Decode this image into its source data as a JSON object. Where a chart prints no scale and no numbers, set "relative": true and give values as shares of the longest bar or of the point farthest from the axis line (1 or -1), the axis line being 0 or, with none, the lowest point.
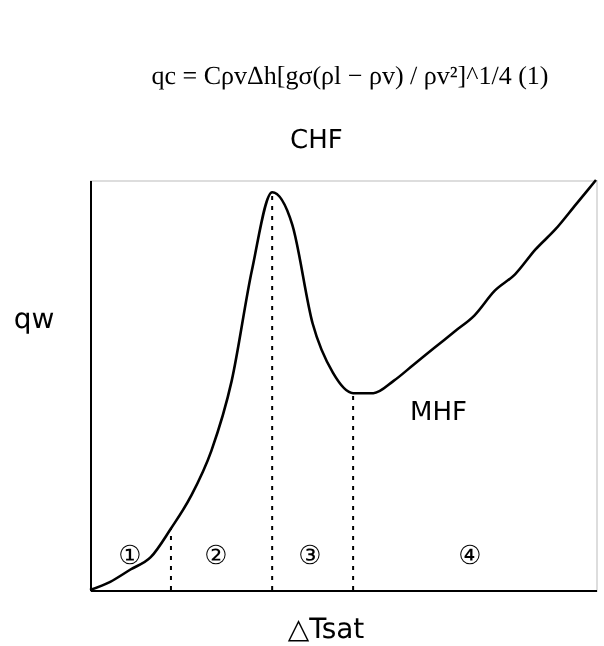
{
  "chart_data": {
    "type": "line",
    "relative": true,
    "title": "qc = CρvΔh[gσ(ρl − ρv) / ρv²]^1/4    (1)",
    "xlabel": "△Tsat",
    "ylabel": "qw",
    "grid": false,
    "marker": "none",
    "line_style": "solid",
    "categories": [
      null,
      null,
      null,
      null,
      null,
      null,
      null,
      null,
      null,
      null,
      null,
      null,
      null,
      null,
      null,
      null,
      null,
      null,
      null,
      null,
      null,
      null,
      null,
      null,
      null,
      null
    ],
    "series": [
      {
        "color": "#000000",
        "values": [
          0,
          0.02,
          0.05,
          0.08,
          0.15,
          0.23,
          0.34,
          0.51,
          0.78,
          0.97,
          0.89,
          0.65,
          0.53,
          0.48,
          0.48,
          0.51,
          0.55,
          0.59,
          0.63,
          0.67,
          0.73,
          0.77,
          0.83,
          0.88,
          0.94,
          1
        ]
      }
    ],
    "annotations": [
      "CHF",
      "MHF",
      "①",
      "②",
      "③",
      "④"
    ]
  }
}
